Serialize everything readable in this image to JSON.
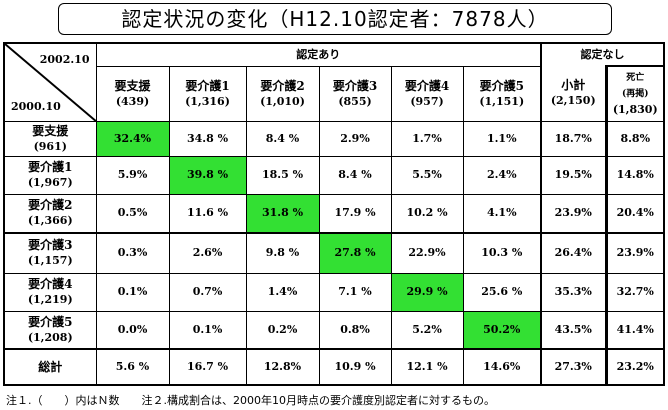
{
  "title": "認定状況の変化（H12.10認定者：7878人）",
  "corner": {
    "top": "2002.10",
    "bottom": "2000.10"
  },
  "group_certified": "認定あり",
  "group_uncertified": "認定なし",
  "columns": [
    {
      "label": "要支援",
      "n": "(439)"
    },
    {
      "label": "要介護1",
      "n": "(1,316)"
    },
    {
      "label": "要介護2",
      "n": "(1,010)"
    },
    {
      "label": "要介護3",
      "n": "(855)"
    },
    {
      "label": "要介護4",
      "n": "(957)"
    },
    {
      "label": "要介護5",
      "n": "(1,151)"
    },
    {
      "label": "小計",
      "n": "(2,150)"
    },
    {
      "label": "死亡",
      "sub": "(再掲)",
      "n": "(1,830)"
    }
  ],
  "rows": [
    {
      "label": "要支援",
      "n": "(961)",
      "values": [
        "32.4%",
        "34.8 %",
        "8.4 %",
        "2.9%",
        "1.7%",
        "1.1%",
        "18.7%",
        "8.8%"
      ],
      "highlight": 0
    },
    {
      "label": "要介護1",
      "n": "(1,967)",
      "values": [
        "5.9%",
        "39.8 %",
        "18.5 %",
        "8.4 %",
        "5.5%",
        "2.4%",
        "19.5%",
        "14.8%"
      ],
      "highlight": 1
    },
    {
      "label": "要介護2",
      "n": "(1,366)",
      "values": [
        "0.5%",
        "11.6 %",
        "31.8 %",
        "17.9 %",
        "10.2 %",
        "4.1%",
        "23.9%",
        "20.4%"
      ],
      "highlight": 2
    },
    {
      "label": "要介護3",
      "n": "(1,157)",
      "values": [
        "0.3%",
        "2.6%",
        "9.8 %",
        "27.8 %",
        "22.9%",
        "10.3 %",
        "26.4%",
        "23.9%"
      ],
      "highlight": 3
    },
    {
      "label": "要介護4",
      "n": "(1,219)",
      "values": [
        "0.1%",
        "0.7%",
        "1.4%",
        "7.1 %",
        "29.9 %",
        "25.6 %",
        "35.3%",
        "32.7%"
      ],
      "highlight": 4
    },
    {
      "label": "要介護5",
      "n": "(1,208)",
      "values": [
        "0.0%",
        "0.1%",
        "0.2%",
        "0.8%",
        "5.2%",
        "50.2%",
        "43.5%",
        "41.4%"
      ],
      "highlight": 5
    }
  ],
  "total": {
    "label": "総計",
    "values": [
      "5.6 %",
      "16.7 %",
      "12.8%",
      "10.9 %",
      "12.1 %",
      "14.6%",
      "27.3%",
      "23.2%"
    ]
  },
  "note": "注１.（　　）内はＮ数　　注２.構成割合は、2000年10月時点の要介護度別認定者に対するもの。",
  "colors": {
    "highlight": "#33e033"
  }
}
